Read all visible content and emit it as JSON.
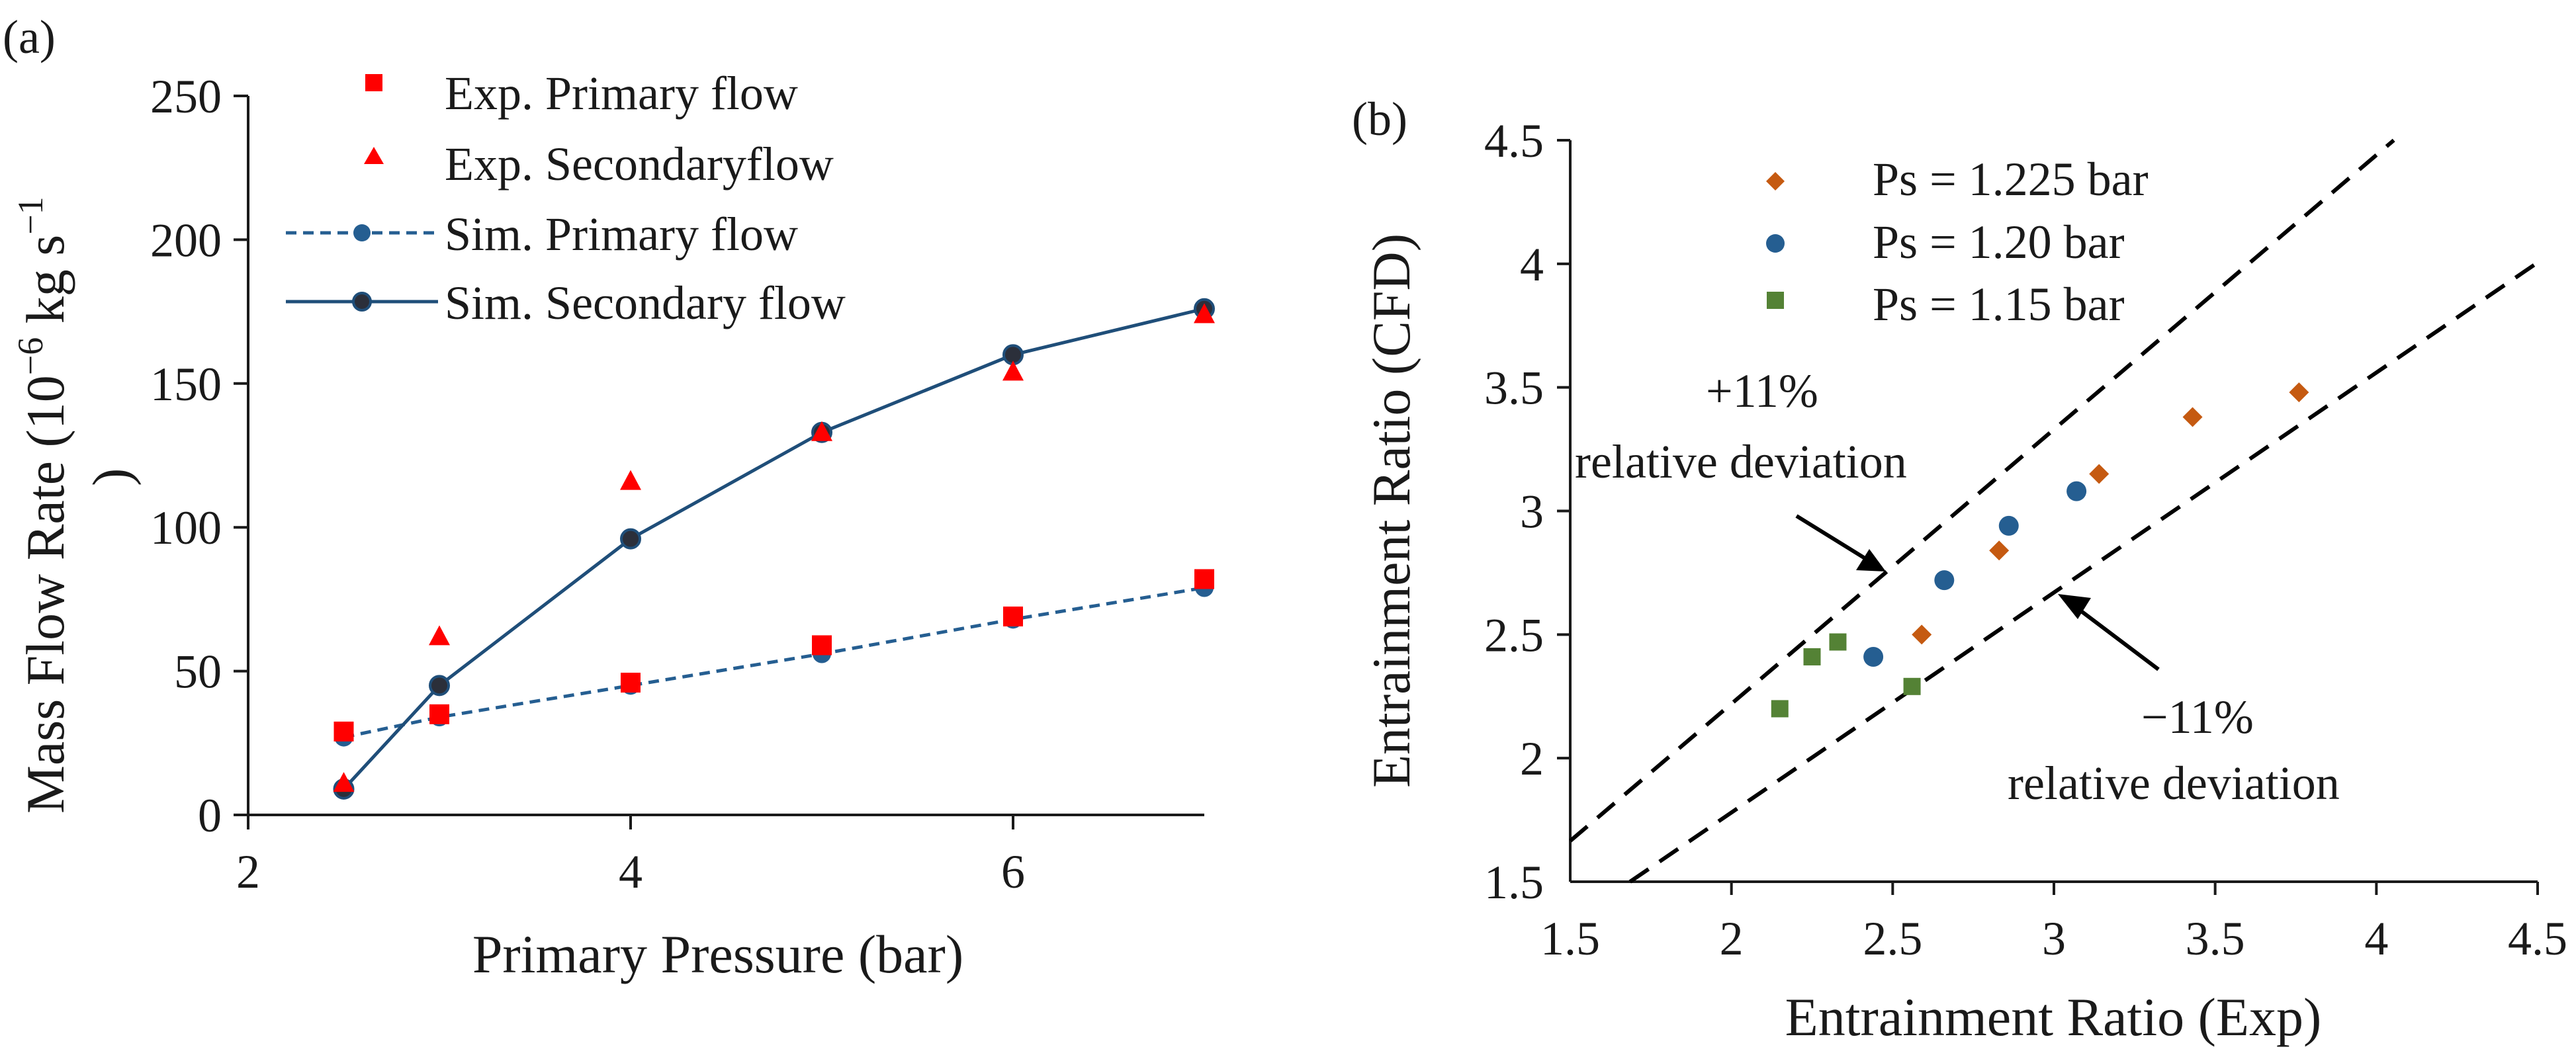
{
  "colors": {
    "axis": "#1a1a1a",
    "exp_primary": "#ff0000",
    "exp_secondary": "#ff0000",
    "sim_primary": "#255e91",
    "sim_secondary": "#1f4e79",
    "sim_secondary_marker": "#2b2f3a",
    "ps_1225": "#c55a11",
    "ps_120": "#255e91",
    "ps_115": "#548235",
    "dash": "#000000"
  },
  "chart_data": [
    {
      "panel_label": "(a)",
      "type": "line",
      "xlabel": "Primary Pressure (bar)",
      "ylabel_prefix": "Mass Flow Rate (10",
      "ylabel_exp": "−6",
      "ylabel_mid": " kg s",
      "ylabel_exp2": "−1",
      "ylabel_suffix": ")",
      "xlim": [
        2,
        7
      ],
      "ylim": [
        0,
        250
      ],
      "xticks": [
        2,
        4,
        6
      ],
      "xtick_labels": [
        "2",
        "4",
        "6"
      ],
      "yticks": [
        0,
        50,
        100,
        150,
        200,
        250
      ],
      "ytick_labels": [
        "0",
        "50",
        "100",
        "150",
        "200",
        "250"
      ],
      "legend_position": "top-left",
      "series": [
        {
          "name": "Exp. Primary flow",
          "style": "square-marker",
          "x": [
            2.5,
            3,
            4,
            5,
            6,
            7
          ],
          "y": [
            29,
            35,
            46,
            59,
            69,
            82
          ]
        },
        {
          "name": "Exp. Secondaryflow",
          "style": "triangle-marker",
          "x": [
            2.5,
            3,
            4,
            5,
            6,
            7
          ],
          "y": [
            11,
            62,
            116,
            133,
            154,
            174
          ]
        },
        {
          "name": "Sim. Primary flow",
          "style": "dashed-line-circle",
          "x": [
            2.5,
            3,
            4,
            5,
            6,
            7
          ],
          "y": [
            27,
            34,
            45,
            56,
            68,
            79
          ]
        },
        {
          "name": "Sim. Secondary flow",
          "style": "solid-line-circle",
          "x": [
            2.5,
            3,
            4,
            5,
            6,
            7
          ],
          "y": [
            9,
            45,
            96,
            133,
            160,
            176
          ]
        }
      ]
    },
    {
      "panel_label": "(b)",
      "type": "scatter",
      "xlabel": "Entrainment Ratio (Exp)",
      "ylabel": "Entrainment Ratio (CFD)",
      "xlim": [
        1.5,
        4.5
      ],
      "ylim": [
        1.5,
        4.5
      ],
      "xticks": [
        1.5,
        2,
        2.5,
        3,
        3.5,
        4,
        4.5
      ],
      "xtick_labels": [
        "1.5",
        "2",
        "2.5",
        "3",
        "3.5",
        "4",
        "4.5"
      ],
      "yticks": [
        1.5,
        2,
        2.5,
        3,
        3.5,
        4,
        4.5
      ],
      "ytick_labels": [
        "1.5",
        "2",
        "2.5",
        "3",
        "3.5",
        "4",
        "4.5"
      ],
      "legend_position": "top-left",
      "series": [
        {
          "name": "Ps = 1.225 bar",
          "marker": "diamond",
          "x": [
            2.59,
            2.83,
            3.14,
            3.43,
            3.76
          ],
          "y": [
            2.5,
            2.84,
            3.15,
            3.38,
            3.48
          ]
        },
        {
          "name": "Ps = 1.20 bar",
          "marker": "circle",
          "x": [
            2.44,
            2.66,
            2.86,
            3.07
          ],
          "y": [
            2.41,
            2.72,
            2.94,
            3.08
          ]
        },
        {
          "name": "Ps = 1.15 bar",
          "marker": "square",
          "x": [
            2.15,
            2.25,
            2.33,
            2.56
          ],
          "y": [
            2.2,
            2.41,
            2.47,
            2.29
          ]
        }
      ],
      "reference_lines": [
        {
          "name": "+11% relative deviation",
          "factor": 1.11
        },
        {
          "name": "−11% relative deviation",
          "factor": 0.89
        }
      ],
      "annotations": {
        "upper_pct": "+11%",
        "upper_text": "relative deviation",
        "lower_pct": "−11%",
        "lower_text": "relative deviation"
      }
    }
  ]
}
